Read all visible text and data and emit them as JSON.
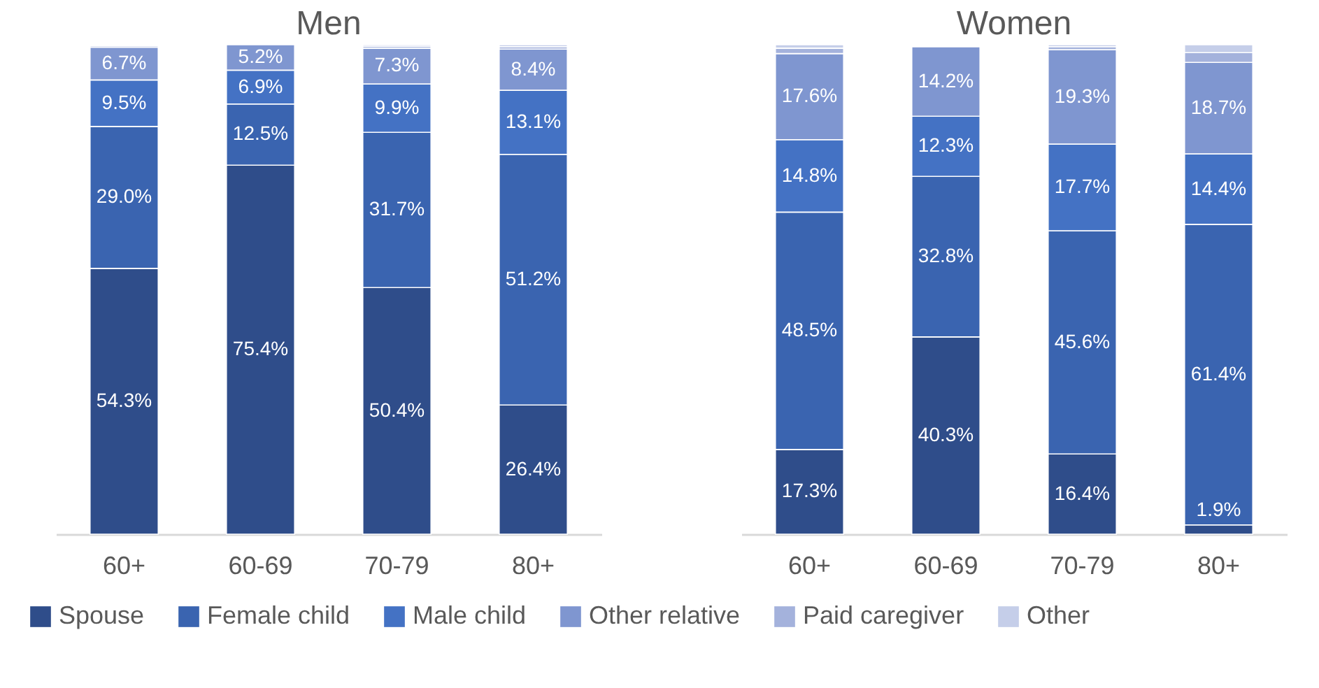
{
  "chart_data": [
    {
      "type": "bar",
      "stacked": true,
      "title": "Men",
      "categories": [
        "60+",
        "60-69",
        "70-79",
        "80+"
      ],
      "ylim": [
        0,
        100
      ],
      "tick_labels": "x",
      "legend": "bottom",
      "series": [
        {
          "name": "Spouse",
          "color": "#2f4d8a",
          "values": [
            54.3,
            75.4,
            50.4,
            26.4
          ],
          "value_labels": [
            "54.3%",
            "75.4%",
            "50.4%",
            "26.4%"
          ]
        },
        {
          "name": "Female child",
          "color": "#3a64b0",
          "values": [
            29.0,
            12.5,
            31.7,
            51.2
          ],
          "value_labels": [
            "29.0%",
            "12.5%",
            "31.7%",
            "51.2%"
          ]
        },
        {
          "name": "Male child",
          "color": "#4472c4",
          "values": [
            9.5,
            6.9,
            9.9,
            13.1
          ],
          "value_labels": [
            "9.5%",
            "6.9%",
            "9.9%",
            "13.1%"
          ]
        },
        {
          "name": "Other relative",
          "color": "#7f96d0",
          "values": [
            6.7,
            5.2,
            7.3,
            8.4
          ],
          "value_labels": [
            "6.7%",
            "5.2%",
            "7.3%",
            "8.4%"
          ]
        },
        {
          "name": "Paid caregiver",
          "color": "#a4b2dc",
          "values": [
            0.3,
            0,
            0.4,
            0.5
          ],
          "value_labels": [
            null,
            null,
            null,
            null
          ]
        },
        {
          "name": "Other",
          "color": "#c5cee9",
          "values": [
            0.2,
            0,
            0.3,
            0.4
          ],
          "value_labels": [
            null,
            null,
            null,
            null
          ]
        }
      ]
    },
    {
      "type": "bar",
      "stacked": true,
      "title": "Women",
      "categories": [
        "60+",
        "60-69",
        "70-79",
        "80+"
      ],
      "ylim": [
        0,
        100
      ],
      "tick_labels": "x",
      "legend": "bottom",
      "series": [
        {
          "name": "Spouse",
          "color": "#2f4d8a",
          "values": [
            17.3,
            40.3,
            16.4,
            1.9
          ],
          "value_labels": [
            "17.3%",
            "40.3%",
            "16.4%",
            "1.9%"
          ]
        },
        {
          "name": "Female child",
          "color": "#3a64b0",
          "values": [
            48.5,
            32.8,
            45.6,
            61.4
          ],
          "value_labels": [
            "48.5%",
            "32.8%",
            "45.6%",
            "61.4%"
          ]
        },
        {
          "name": "Male child",
          "color": "#4472c4",
          "values": [
            14.8,
            12.3,
            17.7,
            14.4
          ],
          "value_labels": [
            "14.8%",
            "12.3%",
            "17.7%",
            "14.4%"
          ]
        },
        {
          "name": "Other relative",
          "color": "#7f96d0",
          "values": [
            17.6,
            14.2,
            19.3,
            18.7
          ],
          "value_labels": [
            "17.6%",
            "14.2%",
            "19.3%",
            "18.7%"
          ]
        },
        {
          "name": "Paid caregiver",
          "color": "#a4b2dc",
          "values": [
            1.1,
            0.2,
            0.6,
            2.0
          ],
          "value_labels": [
            null,
            null,
            null,
            null
          ]
        },
        {
          "name": "Other",
          "color": "#c5cee9",
          "values": [
            0.7,
            0.2,
            0.4,
            1.6
          ],
          "value_labels": [
            null,
            null,
            null,
            null
          ]
        }
      ]
    }
  ]
}
